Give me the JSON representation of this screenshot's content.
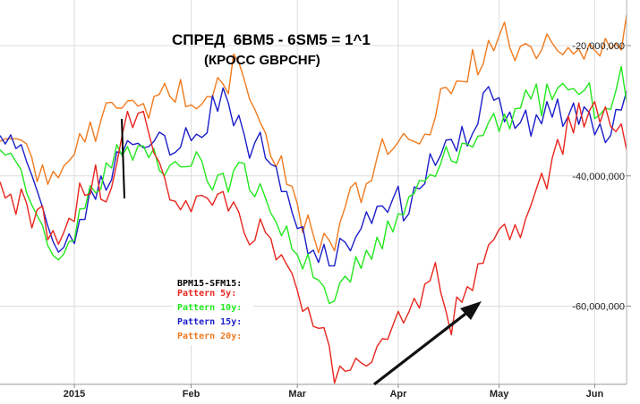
{
  "chart_data": {
    "type": "line",
    "title": "СПРЕД  6BM5 - 6SM5 = 1^1",
    "subtitle": "(КРОСС GBPCHF)",
    "xlabel": "",
    "ylabel": "",
    "x_tick_labels": [
      "2015",
      "Feb",
      "Mar",
      "Apr",
      "May",
      "Jun"
    ],
    "y_tick_labels": [
      "-20,000,000",
      "-40,000,000",
      "-60,000,000"
    ],
    "y_ticks": [
      -20000000,
      -40000000,
      -60000000
    ],
    "ylim": [
      -72000000,
      -13000000
    ],
    "grid": true,
    "legend_title": "BPM15-SFM15:",
    "legend_position": "middle-left",
    "x": [
      0,
      1,
      2,
      3,
      4,
      5,
      6,
      7,
      8,
      9,
      10,
      11,
      12,
      13,
      14,
      15,
      16,
      17,
      18,
      19,
      20,
      21,
      22,
      23,
      24,
      25,
      26,
      27,
      28,
      29,
      30,
      31,
      32,
      33,
      34,
      35,
      36,
      37,
      38,
      39,
      40,
      41,
      42,
      43,
      44,
      45,
      46,
      47,
      48,
      49,
      50,
      51,
      52,
      53,
      54,
      55,
      56,
      57,
      58,
      59,
      60,
      61,
      62,
      63,
      64,
      65,
      66,
      67,
      68,
      69,
      70,
      71,
      72,
      73,
      74,
      75,
      76,
      77,
      78,
      79,
      80,
      81,
      82,
      83,
      84,
      85,
      86,
      87,
      88,
      89,
      90,
      91,
      92,
      93,
      94,
      95,
      96,
      97,
      98,
      99,
      100,
      101,
      102,
      103,
      104,
      105,
      106,
      107,
      108,
      109,
      110,
      111,
      112,
      113,
      114,
      115,
      116,
      117,
      118
    ],
    "x_tick_positions": [
      14,
      36,
      56,
      75,
      94,
      112
    ],
    "series": [
      {
        "name": "Pattern 5y:",
        "color": "#e8261e",
        "values": [
          -40900000,
          -43400000,
          -42800000,
          -45900000,
          -42000000,
          -44200000,
          -48000000,
          -45200000,
          -44600000,
          -49800000,
          -48400000,
          -50500000,
          -48700000,
          -46500000,
          -47000000,
          -41100000,
          -43000000,
          -42800000,
          -38300000,
          -43600000,
          -44000000,
          -41800000,
          -38100000,
          -33800000,
          -30100000,
          -32600000,
          -30400000,
          -30100000,
          -33400000,
          -36500000,
          -37900000,
          -40300000,
          -43700000,
          -43900000,
          -45200000,
          -43800000,
          -45500000,
          -43100000,
          -43000000,
          -43400000,
          -44500000,
          -42800000,
          -42400000,
          -45400000,
          -44000000,
          -45600000,
          -48800000,
          -50600000,
          -49900000,
          -46600000,
          -48700000,
          -49600000,
          -52900000,
          -52100000,
          -53600000,
          -55000000,
          -57600000,
          -60800000,
          -60200000,
          -63100000,
          -63400000,
          -63300000,
          -66100000,
          -71800000,
          -69200000,
          -70000000,
          -69800000,
          -68000000,
          -68700000,
          -69200000,
          -68600000,
          -66200000,
          -65000000,
          -65100000,
          -62900000,
          -60800000,
          -62600000,
          -60900000,
          -58800000,
          -60300000,
          -56600000,
          -56100000,
          -53300000,
          -57900000,
          -60800000,
          -64400000,
          -58600000,
          -59400000,
          -57000000,
          -57600000,
          -53500000,
          -53400000,
          -50600000,
          -49800000,
          -48200000,
          -47400000,
          -49800000,
          -47500000,
          -49500000,
          -46600000,
          -44500000,
          -42000000,
          -39600000,
          -42000000,
          -37300000,
          -34400000,
          -36700000,
          -30800000,
          -33400000,
          -28800000,
          -32500000,
          -30000000,
          -28600000,
          -31800000,
          -29400000,
          -32400000,
          -33200000,
          -32000000,
          -36000000
        ]
      },
      {
        "name": "Pattern 10y:",
        "color": "#22e81e",
        "values": [
          -36000000,
          -36800000,
          -36500000,
          -37800000,
          -39100000,
          -42600000,
          -44500000,
          -46100000,
          -47600000,
          -50700000,
          -52200000,
          -52900000,
          -52000000,
          -50100000,
          -49900000,
          -45100000,
          -45000000,
          -41500000,
          -42600000,
          -42000000,
          -38000000,
          -38800000,
          -35200000,
          -36900000,
          -35500000,
          -37600000,
          -35400000,
          -35400000,
          -37200000,
          -35800000,
          -39200000,
          -39900000,
          -38400000,
          -37800000,
          -38600000,
          -38600000,
          -38500000,
          -36300000,
          -37700000,
          -40800000,
          -42200000,
          -39900000,
          -39600000,
          -42500000,
          -39200000,
          -37900000,
          -38100000,
          -42200000,
          -43200000,
          -41200000,
          -43400000,
          -45700000,
          -47100000,
          -49200000,
          -47700000,
          -51300000,
          -52100000,
          -54300000,
          -52000000,
          -55600000,
          -56000000,
          -57000000,
          -59600000,
          -59200000,
          -56400000,
          -55400000,
          -56300000,
          -52400000,
          -54200000,
          -51400000,
          -52800000,
          -49400000,
          -51200000,
          -46900000,
          -48600000,
          -45800000,
          -46000000,
          -43200000,
          -42700000,
          -40700000,
          -40800000,
          -39800000,
          -40100000,
          -38100000,
          -35500000,
          -37700000,
          -38000000,
          -35000000,
          -35100000,
          -35600000,
          -33900000,
          -33800000,
          -31800000,
          -30400000,
          -33200000,
          -30500000,
          -32800000,
          -29700000,
          -29600000,
          -26800000,
          -28200000,
          -25900000,
          -30800000,
          -25900000,
          -28300000,
          -26500000,
          -25800000,
          -26800000,
          -26600000,
          -27500000,
          -26900000,
          -25700000,
          -31200000,
          -30600000,
          -29600000,
          -29800000,
          -26900000,
          -23200000,
          -28600000
        ]
      },
      {
        "name": "Pattern 15y:",
        "color": "#1c1ec9",
        "values": [
          -33800000,
          -35100000,
          -33700000,
          -35800000,
          -35200000,
          -37800000,
          -39900000,
          -42300000,
          -44800000,
          -47700000,
          -50100000,
          -51700000,
          -51000000,
          -48900000,
          -50400000,
          -46700000,
          -46700000,
          -42000000,
          -43600000,
          -40000000,
          -42200000,
          -40600000,
          -36300000,
          -36600000,
          -34600000,
          -35200000,
          -35000000,
          -35700000,
          -35500000,
          -34700000,
          -33300000,
          -33800000,
          -36800000,
          -36400000,
          -35600000,
          -32600000,
          -34600000,
          -33600000,
          -34100000,
          -33400000,
          -27700000,
          -30100000,
          -26500000,
          -28800000,
          -32300000,
          -30700000,
          -33700000,
          -37300000,
          -34900000,
          -33300000,
          -37300000,
          -38200000,
          -38600000,
          -42400000,
          -42400000,
          -45600000,
          -48100000,
          -47800000,
          -52000000,
          -51400000,
          -53300000,
          -50500000,
          -53800000,
          -53800000,
          -49600000,
          -50200000,
          -51500000,
          -49400000,
          -48100000,
          -45500000,
          -47300000,
          -44700000,
          -44600000,
          -45600000,
          -43500000,
          -41600000,
          -46900000,
          -45800000,
          -41700000,
          -42000000,
          -41200000,
          -36600000,
          -38400000,
          -36800000,
          -34500000,
          -34400000,
          -36200000,
          -32400000,
          -35400000,
          -33500000,
          -32000000,
          -27300000,
          -26300000,
          -28400000,
          -28000000,
          -31700000,
          -30200000,
          -32700000,
          -31800000,
          -29900000,
          -33900000,
          -30600000,
          -32000000,
          -28600000,
          -31000000,
          -28200000,
          -32400000,
          -30900000,
          -28800000,
          -32100000,
          -29400000,
          -30300000,
          -33700000,
          -32000000,
          -34900000,
          -33800000,
          -29800000,
          -29900000,
          -27000000
        ]
      },
      {
        "name": "Pattern 20y:",
        "color": "#f07a1e",
        "values": [
          -34700000,
          -34300000,
          -34300000,
          -34300000,
          -34500000,
          -35100000,
          -37200000,
          -40900000,
          -38300000,
          -41300000,
          -39300000,
          -40300000,
          -38500000,
          -37700000,
          -36700000,
          -33500000,
          -34800000,
          -31700000,
          -34700000,
          -31500000,
          -28800000,
          -28700000,
          -29600000,
          -29600000,
          -28500000,
          -28400000,
          -29300000,
          -28900000,
          -31200000,
          -27800000,
          -27500000,
          -25800000,
          -27800000,
          -28700000,
          -25200000,
          -29400000,
          -29100000,
          -29700000,
          -29000000,
          -27800000,
          -27900000,
          -24900000,
          -25900000,
          -27400000,
          -21300000,
          -22600000,
          -25200000,
          -28200000,
          -29800000,
          -31800000,
          -33400000,
          -37000000,
          -38600000,
          -36900000,
          -41300000,
          -41600000,
          -44300000,
          -48700000,
          -46000000,
          -49100000,
          -51800000,
          -48800000,
          -49900000,
          -51500000,
          -47200000,
          -44800000,
          -41800000,
          -41000000,
          -44100000,
          -41200000,
          -40700000,
          -37200000,
          -34300000,
          -36700000,
          -35900000,
          -34800000,
          -33500000,
          -34400000,
          -34700000,
          -35100000,
          -33600000,
          -33700000,
          -31000000,
          -26600000,
          -26400000,
          -27400000,
          -25400000,
          -25500000,
          -25600000,
          -20600000,
          -24500000,
          -22800000,
          -19200000,
          -20800000,
          -18500000,
          -16400000,
          -20300000,
          -22300000,
          -20100000,
          -19700000,
          -20200000,
          -22000000,
          -20700000,
          -18200000,
          -19600000,
          -20800000,
          -21400000,
          -20300000,
          -21300000,
          -20500000,
          -22100000,
          -19700000,
          -20700000,
          -21600000,
          -18900000,
          -20500000,
          -19700000,
          -20700000,
          -15300000
        ]
      }
    ]
  }
}
